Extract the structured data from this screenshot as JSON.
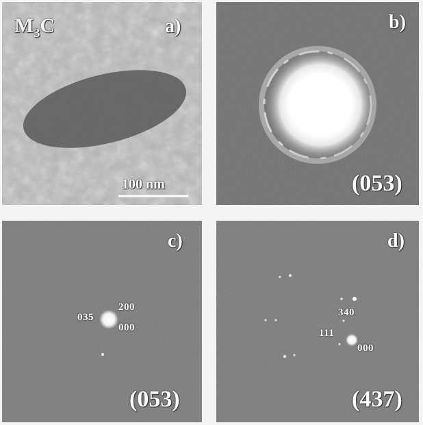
{
  "panels": {
    "a": {
      "label": "a)",
      "phase": "M",
      "phase_sub": "3",
      "phase_tail": "C",
      "scalebar": "100 nm"
    },
    "b": {
      "label": "b)",
      "zone": "(053)"
    },
    "c": {
      "label": "c)",
      "zone": "(053)",
      "spots": [
        "035",
        "200",
        "000"
      ]
    },
    "d": {
      "label": "d)",
      "zone": "(437)",
      "spots": [
        "340",
        "111",
        "000"
      ]
    }
  }
}
